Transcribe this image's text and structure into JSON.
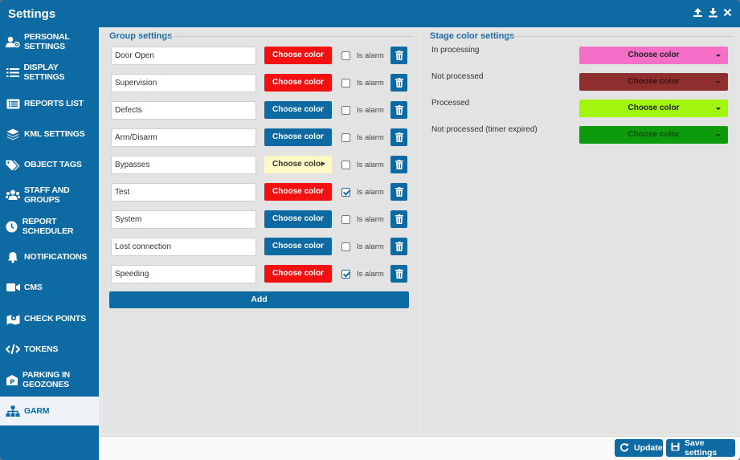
{
  "window": {
    "title": "Settings"
  },
  "sidebar": {
    "items": [
      {
        "label": "PERSONAL SETTINGS",
        "icon": "user-gear-icon"
      },
      {
        "label": "DISPLAY SETTINGS",
        "icon": "list-icon"
      },
      {
        "label": "REPORTS LIST",
        "icon": "report-list-icon"
      },
      {
        "label": "KML SETTINGS",
        "icon": "layers-icon"
      },
      {
        "label": "OBJECT TAGS",
        "icon": "tags-icon"
      },
      {
        "label": "STAFF AND GROUPS",
        "icon": "users-icon"
      },
      {
        "label": "REPORT SCHEDULER",
        "icon": "clock-icon"
      },
      {
        "label": "NOTIFICATIONS",
        "icon": "bell-icon"
      },
      {
        "label": "CMS",
        "icon": "video-camera-icon"
      },
      {
        "label": "CHECK POINTS",
        "icon": "map-pin-icon"
      },
      {
        "label": "TOKENS",
        "icon": "code-icon"
      },
      {
        "label": "PARKING IN GEOZONES",
        "icon": "parking-icon"
      },
      {
        "label": "GARM",
        "icon": "sitemap-icon",
        "active": true
      }
    ]
  },
  "group_settings": {
    "title": "Group settings",
    "alarm_label": "Is alarm",
    "choose_color_label": "Choose color",
    "add_label": "Add",
    "groups": [
      {
        "name": "Door Open",
        "color": "#f21010",
        "text_color": "#ffffff",
        "caret": false,
        "is_alarm": false
      },
      {
        "name": "Supervision",
        "color": "#f21010",
        "text_color": "#ffffff",
        "caret": false,
        "is_alarm": false
      },
      {
        "name": "Defects",
        "color": "#0e6aa3",
        "text_color": "#ffffff",
        "caret": false,
        "is_alarm": false
      },
      {
        "name": "Arm/Disarm",
        "color": "#0e6aa3",
        "text_color": "#ffffff",
        "caret": false,
        "is_alarm": false
      },
      {
        "name": "Bypasses",
        "color": "#fcf9c4",
        "text_color": "#333333",
        "caret": true,
        "is_alarm": false
      },
      {
        "name": "Test",
        "color": "#f21010",
        "text_color": "#ffffff",
        "caret": false,
        "is_alarm": true
      },
      {
        "name": "System",
        "color": "#0e6aa3",
        "text_color": "#ffffff",
        "caret": false,
        "is_alarm": false
      },
      {
        "name": "Lost connection",
        "color": "#0e6aa3",
        "text_color": "#ffffff",
        "caret": false,
        "is_alarm": false
      },
      {
        "name": "Speeding",
        "color": "#f21010",
        "text_color": "#ffffff",
        "caret": false,
        "is_alarm": true
      }
    ]
  },
  "stage_settings": {
    "title": "Stage color settings",
    "choose_color_label": "Choose color",
    "stages": [
      {
        "label": "In processing",
        "color": "#f56fc8",
        "text_color": "#222222"
      },
      {
        "label": "Not processed",
        "color": "#8e2e2e",
        "text_color": "#3a1010"
      },
      {
        "label": "Processed",
        "color": "#a2f50c",
        "text_color": "#222222"
      },
      {
        "label": "Not processed (timer expired)",
        "color": "#0d9b0d",
        "text_color": "#0a4d0a"
      }
    ]
  },
  "footer": {
    "update_label": "Update",
    "save_label": "Save settings"
  }
}
